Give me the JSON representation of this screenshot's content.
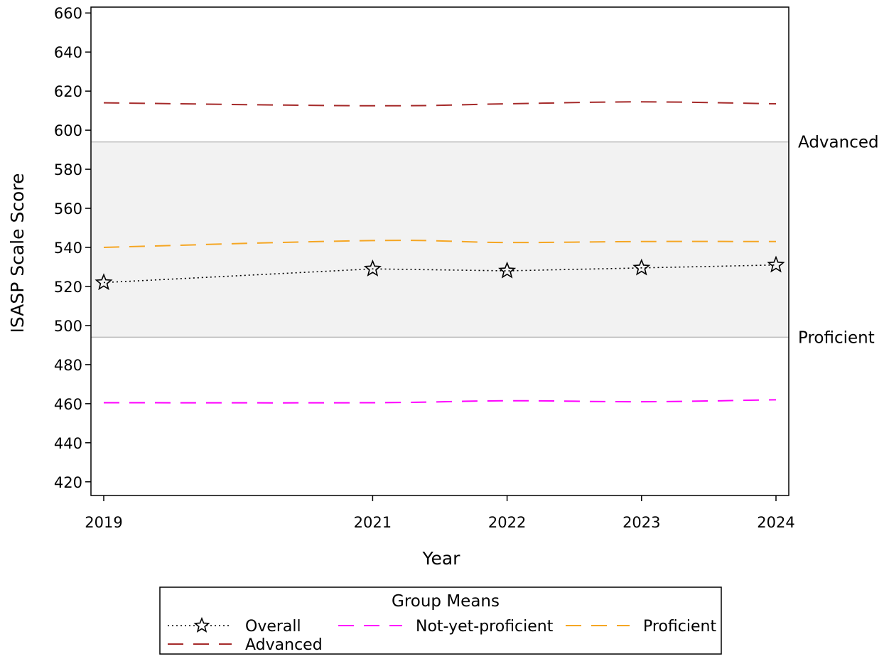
{
  "chart_data": {
    "type": "line",
    "title": "",
    "xlabel": "Year",
    "ylabel": "ISASP Scale Score",
    "x": [
      2019,
      2021,
      2022,
      2023,
      2024
    ],
    "x_tick_labels": [
      "2019",
      "2021",
      "2022",
      "2023",
      "2024"
    ],
    "xlim": [
      2019,
      2024
    ],
    "ylim": [
      413,
      663
    ],
    "y_ticks": [
      420,
      440,
      460,
      480,
      500,
      520,
      540,
      560,
      580,
      600,
      620,
      640,
      660
    ],
    "grid": false,
    "band": {
      "from": 494,
      "to": 594,
      "color": "#f2f2f2",
      "line_color": "#bdbdbd"
    },
    "reference_lines": [
      {
        "label": "Advanced",
        "value": 594
      },
      {
        "label": "Proficient",
        "value": 494
      }
    ],
    "series": [
      {
        "name": "Overall",
        "values": [
          522,
          529,
          528,
          529.5,
          531
        ],
        "color": "#000000",
        "style": "dotted",
        "marker": "star"
      },
      {
        "name": "Not-yet-proficient",
        "values": [
          460.5,
          460.5,
          461.5,
          461,
          462
        ],
        "color": "#ff00ff",
        "style": "dashed",
        "marker": "none"
      },
      {
        "name": "Proficient",
        "values": [
          540,
          543.5,
          542.5,
          543,
          543
        ],
        "color": "#f5a623",
        "style": "dashed",
        "marker": "none"
      },
      {
        "name": "Advanced",
        "values": [
          614,
          612.5,
          613.5,
          614.5,
          613.5
        ],
        "color": "#a52a2a",
        "style": "dashed",
        "marker": "none"
      }
    ],
    "legend": {
      "title": "Group Means",
      "position": "bottom"
    }
  }
}
